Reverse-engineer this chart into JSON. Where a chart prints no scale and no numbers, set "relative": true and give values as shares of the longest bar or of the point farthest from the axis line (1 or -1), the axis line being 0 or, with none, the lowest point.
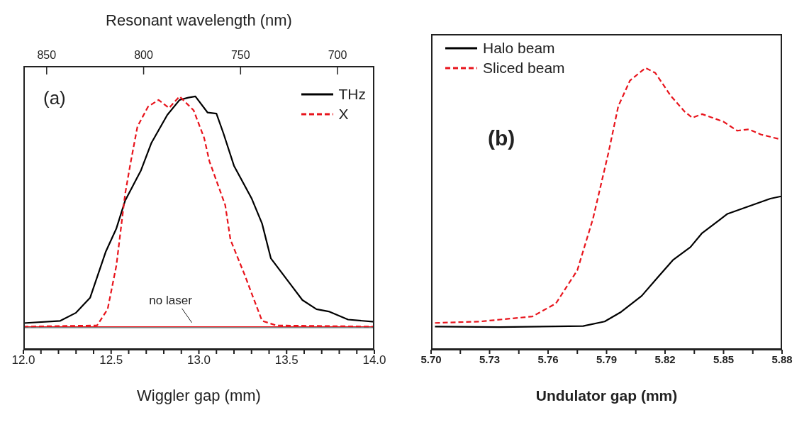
{
  "chart_data": [
    {
      "type": "line",
      "relative": true,
      "xlabel": "Wiggler gap (mm)",
      "x2label": "Resonant wavelength (nm)",
      "xlim": [
        12.0,
        14.0
      ],
      "xticks": [
        {
          "value": 12,
          "label": "12.0"
        },
        {
          "value": 12.1,
          "label": null
        },
        {
          "value": 12.2,
          "label": null
        },
        {
          "value": 12.3,
          "label": null
        },
        {
          "value": 12.4,
          "label": null
        },
        12.5,
        {
          "value": 12.6,
          "label": null
        },
        {
          "value": 12.7,
          "label": null
        },
        {
          "value": 12.8,
          "label": null
        },
        {
          "value": 12.9,
          "label": null
        },
        {
          "value": 13,
          "label": "13.0"
        },
        {
          "value": 13.1,
          "label": null
        },
        {
          "value": 13.2,
          "label": null
        },
        {
          "value": 13.3,
          "label": null
        },
        {
          "value": 13.4,
          "label": null
        },
        13.5,
        {
          "value": 13.6,
          "label": null
        },
        {
          "value": 13.7,
          "label": null
        },
        {
          "value": 13.8,
          "label": null
        },
        {
          "value": 13.9,
          "label": null
        },
        {
          "value": 14,
          "label": "14.0"
        }
      ],
      "x2lim": [
        862,
        681
      ],
      "x2ticks": [
        850,
        800,
        750,
        700
      ],
      "legend": "top right",
      "marker": "none",
      "annotations": [
        "(a)",
        {
          "text": "no laser",
          "x": 12.96,
          "y": 0.09
        }
      ],
      "series": [
        {
          "name": "THz",
          "color": "#000000",
          "line_style": "solid",
          "x": [
            12.0,
            12.21,
            12.3,
            12.38,
            12.47,
            12.53,
            12.58,
            12.67,
            12.73,
            12.82,
            12.89,
            12.94,
            12.98,
            13.05,
            13.1,
            13.14,
            13.2,
            13.3,
            13.36,
            13.41,
            13.52,
            13.59,
            13.67,
            13.74,
            13.85,
            14.0
          ],
          "values": [
            0.105,
            0.114,
            0.146,
            0.205,
            0.388,
            0.479,
            0.589,
            0.708,
            0.817,
            0.927,
            0.986,
            0.995,
            1.0,
            0.936,
            0.932,
            0.854,
            0.726,
            0.598,
            0.498,
            0.361,
            0.26,
            0.196,
            0.16,
            0.151,
            0.119,
            0.11
          ]
        },
        {
          "name": "X",
          "color": "#e8141c",
          "line_style": "dashed",
          "x": [
            12.0,
            12.42,
            12.48,
            12.53,
            12.58,
            12.61,
            12.65,
            12.71,
            12.77,
            12.83,
            12.89,
            12.97,
            13.03,
            13.06,
            13.15,
            13.18,
            13.26,
            13.36,
            13.44,
            14.0
          ],
          "values": [
            0.091,
            0.096,
            0.16,
            0.333,
            0.616,
            0.735,
            0.881,
            0.959,
            0.986,
            0.954,
            1.0,
            0.945,
            0.836,
            0.744,
            0.571,
            0.434,
            0.297,
            0.114,
            0.096,
            0.091
          ]
        },
        {
          "color": "#555555",
          "line_style": "solid",
          "x": [
            12.0,
            12.7,
            13.3,
            14.0
          ],
          "values": [
            0.087,
            0.087,
            0.087,
            0.087
          ]
        },
        {
          "color": "#e8141c",
          "line_style": "solid",
          "x": [
            12.0,
            12.7,
            13.3,
            14.0
          ],
          "values": [
            0.091,
            0.091,
            0.091,
            0.091
          ]
        }
      ]
    },
    {
      "type": "line",
      "relative": true,
      "xlabel": "Undulator gap (mm)",
      "xlim": [
        5.7,
        5.88
      ],
      "xticks": [
        {
          "value": 5.7,
          "label": "5.70"
        },
        {
          "value": 5.715,
          "label": null
        },
        5.73,
        {
          "value": 5.745,
          "label": null
        },
        5.76,
        {
          "value": 5.775,
          "label": null
        },
        5.79,
        {
          "value": 5.805,
          "label": null
        },
        5.82,
        {
          "value": 5.835,
          "label": null
        },
        5.85,
        {
          "value": 5.865,
          "label": null
        },
        5.88
      ],
      "legend": "top left",
      "marker": "none",
      "annotations": [
        "(b)"
      ],
      "series": [
        {
          "name": "Halo beam",
          "color": "#000000",
          "line_style": "solid",
          "x": [
            5.702,
            5.735,
            5.778,
            5.789,
            5.797,
            5.808,
            5.816,
            5.824,
            5.833,
            5.839,
            5.852,
            5.863,
            5.874,
            5.88
          ],
          "values": [
            0.082,
            0.08,
            0.084,
            0.1,
            0.132,
            0.191,
            0.255,
            0.318,
            0.364,
            0.414,
            0.482,
            0.509,
            0.536,
            0.545
          ]
        },
        {
          "name": "Sliced beam",
          "color": "#e8141c",
          "line_style": "dashed",
          "x": [
            5.702,
            5.725,
            5.752,
            5.764,
            5.775,
            5.783,
            5.791,
            5.796,
            5.802,
            5.81,
            5.815,
            5.823,
            5.83,
            5.834,
            5.839,
            5.85,
            5.857,
            5.863,
            5.869,
            5.88
          ],
          "values": [
            0.095,
            0.1,
            0.118,
            0.164,
            0.282,
            0.464,
            0.7,
            0.864,
            0.955,
            1.0,
            0.982,
            0.9,
            0.845,
            0.823,
            0.836,
            0.809,
            0.777,
            0.782,
            0.764,
            0.745
          ]
        }
      ]
    }
  ]
}
